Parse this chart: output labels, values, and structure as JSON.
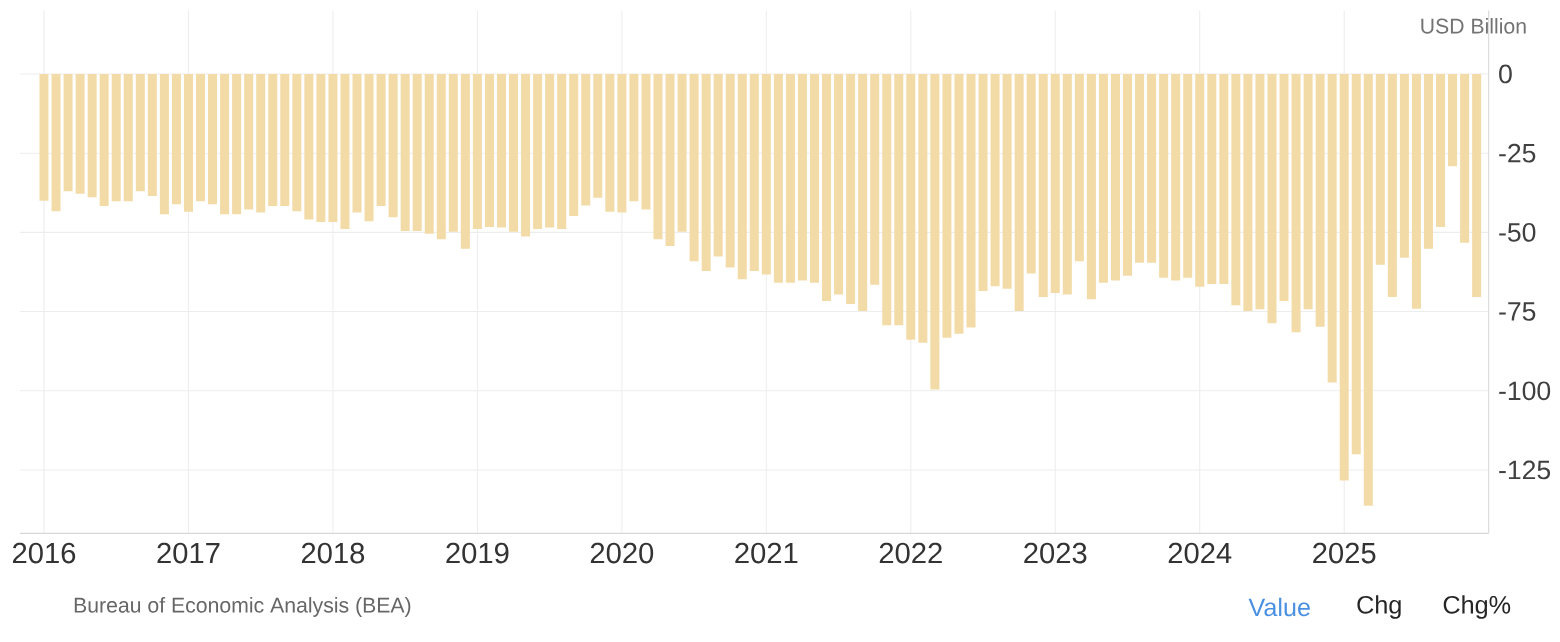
{
  "chart_data": {
    "type": "bar",
    "ylabel": "USD Billion",
    "color": "#f3dba8",
    "grid": true,
    "x": [
      "2016-01",
      "2016-02",
      "2016-03",
      "2016-04",
      "2016-05",
      "2016-06",
      "2016-07",
      "2016-08",
      "2016-09",
      "2016-10",
      "2016-11",
      "2016-12",
      "2017-01",
      "2017-02",
      "2017-03",
      "2017-04",
      "2017-05",
      "2017-06",
      "2017-07",
      "2017-08",
      "2017-09",
      "2017-10",
      "2017-11",
      "2017-12",
      "2018-01",
      "2018-02",
      "2018-03",
      "2018-04",
      "2018-05",
      "2018-06",
      "2018-07",
      "2018-08",
      "2018-09",
      "2018-10",
      "2018-11",
      "2018-12",
      "2019-01",
      "2019-02",
      "2019-03",
      "2019-04",
      "2019-05",
      "2019-06",
      "2019-07",
      "2019-08",
      "2019-09",
      "2019-10",
      "2019-11",
      "2019-12",
      "2020-01",
      "2020-02",
      "2020-03",
      "2020-04",
      "2020-05",
      "2020-06",
      "2020-07",
      "2020-08",
      "2020-09",
      "2020-10",
      "2020-11",
      "2020-12",
      "2021-01",
      "2021-02",
      "2021-03",
      "2021-04",
      "2021-05",
      "2021-06",
      "2021-07",
      "2021-08",
      "2021-09",
      "2021-10",
      "2021-11",
      "2021-12",
      "2022-01",
      "2022-02",
      "2022-03",
      "2022-04",
      "2022-05",
      "2022-06",
      "2022-07",
      "2022-08",
      "2022-09",
      "2022-10",
      "2022-11",
      "2022-12",
      "2023-01",
      "2023-02",
      "2023-03",
      "2023-04",
      "2023-05",
      "2023-06",
      "2023-07",
      "2023-08",
      "2023-09",
      "2023-10",
      "2023-11",
      "2023-12",
      "2024-01",
      "2024-02",
      "2024-03",
      "2024-04",
      "2024-05",
      "2024-06",
      "2024-07",
      "2024-08",
      "2024-09",
      "2024-10",
      "2024-11",
      "2024-12",
      "2025-01",
      "2025-02",
      "2025-03",
      "2025-04",
      "2025-05",
      "2025-06",
      "2025-07",
      "2025-08",
      "2025-09",
      "2025-10",
      "2025-11",
      "2025-12"
    ],
    "values": [
      -40.0,
      -43.3,
      -37.0,
      -37.8,
      -38.9,
      -41.7,
      -40.2,
      -40.2,
      -37.0,
      -38.5,
      -44.3,
      -41.1,
      -43.5,
      -40.2,
      -41.1,
      -44.3,
      -44.3,
      -42.8,
      -43.7,
      -41.7,
      -41.7,
      -43.3,
      -45.9,
      -46.7,
      -46.7,
      -48.9,
      -43.7,
      -46.5,
      -41.7,
      -45.2,
      -49.6,
      -49.6,
      -50.4,
      -52.2,
      -49.8,
      -55.2,
      -48.9,
      -48.3,
      -48.5,
      -49.8,
      -51.3,
      -48.9,
      -48.5,
      -48.9,
      -44.8,
      -41.5,
      -39.1,
      -43.5,
      -43.7,
      -40.2,
      -42.8,
      -52.2,
      -54.3,
      -49.8,
      -59.1,
      -62.2,
      -57.6,
      -61.1,
      -64.8,
      -62.2,
      -63.3,
      -65.9,
      -65.9,
      -65.2,
      -65.9,
      -71.7,
      -69.6,
      -72.6,
      -74.8,
      -66.5,
      -79.3,
      -79.3,
      -83.9,
      -84.8,
      -99.6,
      -83.3,
      -82.0,
      -80.0,
      -68.5,
      -67.0,
      -67.8,
      -74.8,
      -63.0,
      -70.4,
      -69.1,
      -69.6,
      -59.1,
      -71.1,
      -65.9,
      -65.2,
      -63.7,
      -59.6,
      -59.6,
      -64.3,
      -65.2,
      -64.3,
      -67.2,
      -66.3,
      -66.3,
      -73.0,
      -74.8,
      -74.3,
      -78.7,
      -71.7,
      -81.5,
      -74.3,
      -79.8,
      -97.4,
      -128.3,
      -120.0,
      -136.3,
      -60.2,
      -70.4,
      -58.0,
      -74.1,
      -55.2,
      -48.3,
      -29.1,
      -53.3,
      -70.4
    ],
    "xlim": [
      "2015-11",
      "2026-01"
    ],
    "xticks": [
      {
        "value": "2016",
        "label": "2016"
      },
      {
        "value": "2017",
        "label": "2017"
      },
      {
        "value": "2018",
        "label": "2018"
      },
      {
        "value": "2019",
        "label": "2019"
      },
      {
        "value": "2020",
        "label": "2020"
      },
      {
        "value": "2021",
        "label": "2021"
      },
      {
        "value": "2022",
        "label": "2022"
      },
      {
        "value": "2023",
        "label": "2023"
      },
      {
        "value": "2024",
        "label": "2024"
      },
      {
        "value": "2025",
        "label": "2025"
      }
    ],
    "ylim": [
      -145,
      20
    ],
    "yticks": [
      0,
      -25,
      -50,
      -75,
      -100,
      -125
    ],
    "annotations": [
      "Bureau of Economic Analysis (BEA)",
      "Value",
      "Chg",
      "Chg%"
    ]
  }
}
